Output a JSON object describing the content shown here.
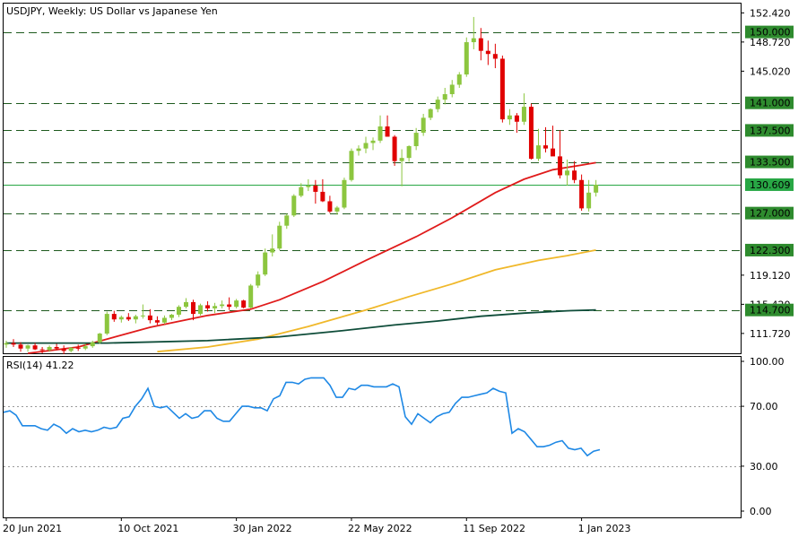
{
  "chart_data": {
    "type": "candlestick",
    "title": "USDJPY, Weekly:  US Dollar vs Japanese Yen",
    "price_axis": {
      "range": [
        109.2,
        153.6
      ],
      "ticks": [
        "152.420",
        "148.720",
        "145.020",
        "119.120",
        "115.420",
        "111.720"
      ]
    },
    "levels": [
      {
        "label": "150.000",
        "value": 150.0
      },
      {
        "label": "141.000",
        "value": 141.0
      },
      {
        "label": "137.500",
        "value": 137.5
      },
      {
        "label": "133.500",
        "value": 133.5
      },
      {
        "label": "127.000",
        "value": 127.0
      },
      {
        "label": "122.300",
        "value": 122.3
      },
      {
        "label": "114.700",
        "value": 114.7
      }
    ],
    "current_price": {
      "label": "130.609",
      "value": 130.609
    },
    "x_labels": [
      {
        "label": "20 Jun 2021",
        "index": 0
      },
      {
        "label": "10 Oct 2021",
        "index": 16
      },
      {
        "label": "30 Jan 2022",
        "index": 32
      },
      {
        "label": "22 May 2022",
        "index": 48
      },
      {
        "label": "11 Sep 2022",
        "index": 64
      },
      {
        "label": "1 Jan 2023",
        "index": 80
      }
    ],
    "candles": [
      [
        110.3,
        110.8,
        109.9,
        110.5
      ],
      [
        110.5,
        111.0,
        110.0,
        110.3
      ],
      [
        110.3,
        110.6,
        109.4,
        109.8
      ],
      [
        109.8,
        110.3,
        109.4,
        110.2
      ],
      [
        110.2,
        110.5,
        109.6,
        109.7
      ],
      [
        109.7,
        110.0,
        109.2,
        109.6
      ],
      [
        109.6,
        110.2,
        109.4,
        110.0
      ],
      [
        110.0,
        110.4,
        109.6,
        109.8
      ],
      [
        109.8,
        110.2,
        109.1,
        109.5
      ],
      [
        109.5,
        110.0,
        109.3,
        109.9
      ],
      [
        109.9,
        110.3,
        109.5,
        109.8
      ],
      [
        109.8,
        110.4,
        109.6,
        110.1
      ],
      [
        110.1,
        110.8,
        109.9,
        110.6
      ],
      [
        110.6,
        111.8,
        110.4,
        111.7
      ],
      [
        111.7,
        114.5,
        111.5,
        114.2
      ],
      [
        114.2,
        114.6,
        113.2,
        113.5
      ],
      [
        113.5,
        114.0,
        113.1,
        113.8
      ],
      [
        113.8,
        114.3,
        113.3,
        113.5
      ],
      [
        113.5,
        114.1,
        113.0,
        113.9
      ],
      [
        113.9,
        115.4,
        113.6,
        114.0
      ],
      [
        114.0,
        114.8,
        113.0,
        113.4
      ],
      [
        113.4,
        113.9,
        112.8,
        113.1
      ],
      [
        113.1,
        114.0,
        112.9,
        113.7
      ],
      [
        113.7,
        114.2,
        113.4,
        114.1
      ],
      [
        114.1,
        115.3,
        113.8,
        115.1
      ],
      [
        115.1,
        116.2,
        114.9,
        115.7
      ],
      [
        115.7,
        116.0,
        113.4,
        114.2
      ],
      [
        114.2,
        115.5,
        114.0,
        115.3
      ],
      [
        115.3,
        115.8,
        114.5,
        114.9
      ],
      [
        114.9,
        115.6,
        114.3,
        115.2
      ],
      [
        115.2,
        115.9,
        114.9,
        115.4
      ],
      [
        115.4,
        116.3,
        114.7,
        115.1
      ],
      [
        115.1,
        116.1,
        114.9,
        115.9
      ],
      [
        115.9,
        116.0,
        114.9,
        115.0
      ],
      [
        115.0,
        118.0,
        114.9,
        117.8
      ],
      [
        117.8,
        119.6,
        117.5,
        119.2
      ],
      [
        119.2,
        122.5,
        119.0,
        122.0
      ],
      [
        122.0,
        124.3,
        121.5,
        122.5
      ],
      [
        122.5,
        125.9,
        122.3,
        125.4
      ],
      [
        125.4,
        126.9,
        125.0,
        126.7
      ],
      [
        126.7,
        129.4,
        126.5,
        129.2
      ],
      [
        129.2,
        130.8,
        129.0,
        130.3
      ],
      [
        130.3,
        131.3,
        129.8,
        130.5
      ],
      [
        130.5,
        131.2,
        128.2,
        129.7
      ],
      [
        129.7,
        131.3,
        128.4,
        128.5
      ],
      [
        128.5,
        129.2,
        127.0,
        127.2
      ],
      [
        127.2,
        127.9,
        126.8,
        127.7
      ],
      [
        127.7,
        131.5,
        127.5,
        131.2
      ],
      [
        131.2,
        135.2,
        131.0,
        134.9
      ],
      [
        134.9,
        135.6,
        134.3,
        135.2
      ],
      [
        135.2,
        136.7,
        134.6,
        135.9
      ],
      [
        135.9,
        136.6,
        135.0,
        136.2
      ],
      [
        136.2,
        139.4,
        135.9,
        138.0
      ],
      [
        138.0,
        139.4,
        136.7,
        136.7
      ],
      [
        136.7,
        136.9,
        133.0,
        133.6
      ],
      [
        133.6,
        135.1,
        130.4,
        134.0
      ],
      [
        134.0,
        135.6,
        133.5,
        135.5
      ],
      [
        135.5,
        137.8,
        135.0,
        137.2
      ],
      [
        137.2,
        139.6,
        136.8,
        139.1
      ],
      [
        139.1,
        140.3,
        138.8,
        140.2
      ],
      [
        140.2,
        141.8,
        139.8,
        141.4
      ],
      [
        141.4,
        142.9,
        140.8,
        142.1
      ],
      [
        142.1,
        143.9,
        141.7,
        143.3
      ],
      [
        143.3,
        144.9,
        142.9,
        144.6
      ],
      [
        144.6,
        149.3,
        144.3,
        148.7
      ],
      [
        148.7,
        151.9,
        147.8,
        149.2
      ],
      [
        149.2,
        150.5,
        146.4,
        147.6
      ],
      [
        147.6,
        148.9,
        145.8,
        147.2
      ],
      [
        147.2,
        148.5,
        145.4,
        146.6
      ],
      [
        146.6,
        147.0,
        138.5,
        138.9
      ],
      [
        138.9,
        140.2,
        138.2,
        139.4
      ],
      [
        139.4,
        139.7,
        137.2,
        138.6
      ],
      [
        138.6,
        142.2,
        138.2,
        140.5
      ],
      [
        140.5,
        140.9,
        133.8,
        133.9
      ],
      [
        133.9,
        137.7,
        133.6,
        135.6
      ],
      [
        135.6,
        137.9,
        134.7,
        135.2
      ],
      [
        135.2,
        138.1,
        134.5,
        134.2
      ],
      [
        134.2,
        137.5,
        131.4,
        131.8
      ],
      [
        131.8,
        133.8,
        130.5,
        132.4
      ],
      [
        132.4,
        133.6,
        130.8,
        131.2
      ],
      [
        131.2,
        131.9,
        127.3,
        127.6
      ],
      [
        127.6,
        131.2,
        127.2,
        129.6
      ],
      [
        129.6,
        131.2,
        129.1,
        130.6
      ]
    ],
    "moving_averages": [
      {
        "color": "#e01b1b",
        "points": [
          [
            3,
            109.2
          ],
          [
            10,
            110.0
          ],
          [
            20,
            112.5
          ],
          [
            28,
            114.0
          ],
          [
            34,
            114.8
          ],
          [
            38,
            116.0
          ],
          [
            44,
            118.3
          ],
          [
            50,
            121.0
          ],
          [
            57,
            124.0
          ],
          [
            62,
            126.4
          ],
          [
            68,
            129.6
          ],
          [
            72,
            131.3
          ],
          [
            76,
            132.5
          ],
          [
            80,
            133.1
          ],
          [
            82,
            133.4
          ]
        ]
      },
      {
        "color": "#f0b82a",
        "points": [
          [
            21,
            109.4
          ],
          [
            28,
            110.0
          ],
          [
            35,
            111.0
          ],
          [
            42,
            112.6
          ],
          [
            50,
            114.7
          ],
          [
            56,
            116.4
          ],
          [
            62,
            118.0
          ],
          [
            68,
            119.8
          ],
          [
            74,
            121.0
          ],
          [
            78,
            121.6
          ],
          [
            82,
            122.3
          ]
        ]
      },
      {
        "color": "#0f4d3a",
        "points": [
          [
            0,
            110.5
          ],
          [
            14,
            110.5
          ],
          [
            28,
            110.8
          ],
          [
            38,
            111.3
          ],
          [
            46,
            112.0
          ],
          [
            54,
            112.8
          ],
          [
            60,
            113.3
          ],
          [
            66,
            113.9
          ],
          [
            72,
            114.3
          ],
          [
            78,
            114.6
          ],
          [
            82,
            114.7
          ]
        ]
      }
    ],
    "rsi": {
      "label": "RSI(14) 41.22",
      "range": [
        0,
        100
      ],
      "ticks": [
        "100.00",
        "70.00",
        "30.00",
        "0.00"
      ],
      "levels": [
        70,
        30
      ],
      "values": [
        66,
        67,
        64,
        57,
        57,
        57,
        55,
        54,
        58,
        56,
        52,
        55,
        53,
        54,
        53,
        54,
        56,
        55,
        56,
        62,
        63,
        70,
        75,
        82,
        70,
        69,
        70,
        66,
        62,
        65,
        62,
        63,
        67,
        67,
        62,
        60,
        60,
        65,
        70,
        70,
        69,
        69,
        67,
        75,
        77,
        86,
        86,
        85,
        88,
        89,
        89,
        89,
        84,
        76,
        76,
        82,
        81,
        84,
        84,
        83,
        83,
        83,
        85,
        83,
        63,
        58,
        65,
        62,
        59,
        63,
        65,
        66,
        72,
        76,
        76,
        77,
        78,
        79,
        82,
        80,
        79,
        52,
        55,
        53,
        48,
        43,
        43,
        44,
        46,
        47,
        42,
        41,
        42,
        37,
        40,
        41
      ]
    }
  }
}
